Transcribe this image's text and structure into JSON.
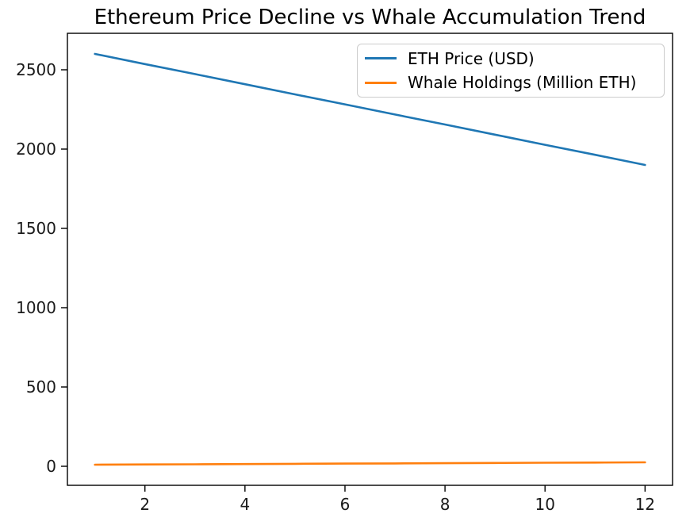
{
  "chart_data": {
    "type": "line",
    "title": "Ethereum Price Decline vs Whale Accumulation Trend",
    "xlabel": "",
    "ylabel": "",
    "x": [
      1,
      2,
      3,
      4,
      5,
      6,
      7,
      8,
      9,
      10,
      11,
      12
    ],
    "series": [
      {
        "name": "ETH Price (USD)",
        "color": "#1f77b4",
        "values": [
          2600,
          2536,
          2473,
          2409,
          2345,
          2282,
          2218,
          2155,
          2091,
          2027,
          1964,
          1900
        ]
      },
      {
        "name": "Whale Holdings (Million ETH)",
        "color": "#ff7f0e",
        "values": [
          10,
          11.4,
          12.7,
          14.1,
          15.5,
          16.8,
          18.2,
          19.5,
          20.9,
          22.3,
          23.6,
          25
        ]
      }
    ],
    "xlim": [
      0.45,
      12.55
    ],
    "ylim": [
      -120,
      2730
    ],
    "xticks": [
      2,
      4,
      6,
      8,
      10,
      12
    ],
    "yticks": [
      0,
      500,
      1000,
      1500,
      2000,
      2500
    ],
    "grid": false,
    "legend_position": "upper right",
    "axis_color": "#000000",
    "tick_label_color": "#1a1a1a",
    "line_width": 2.6
  }
}
